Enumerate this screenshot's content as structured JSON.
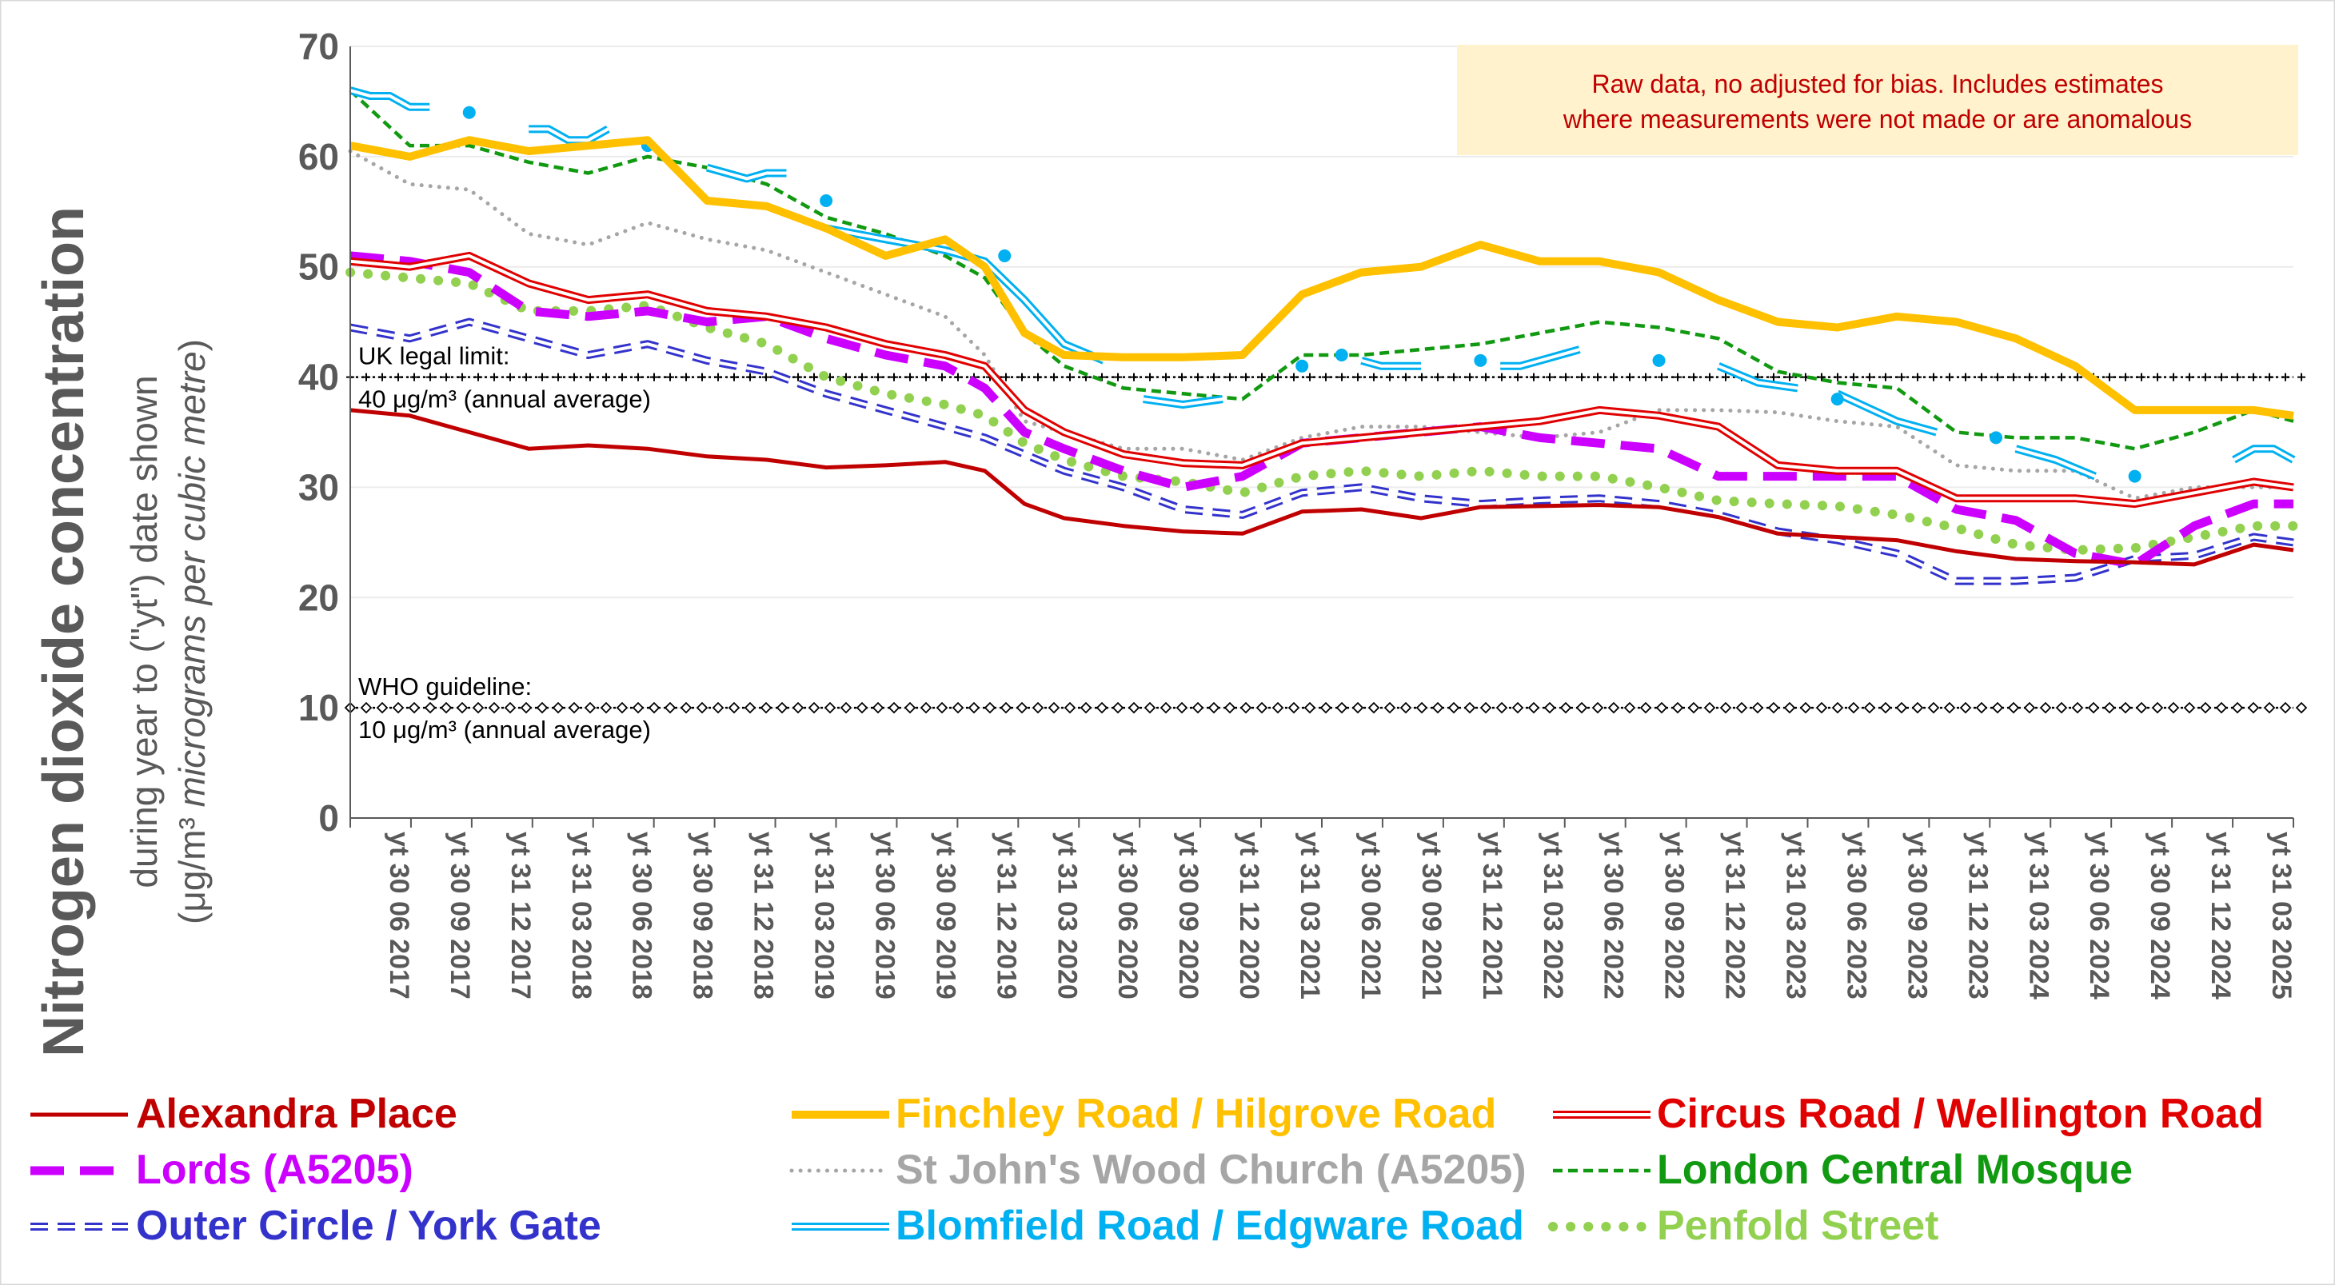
{
  "chart_data": {
    "type": "line",
    "ylabel": {
      "main": "Nitrogen dioxide concentration",
      "sub": "during year to (\"yt\") date shown",
      "unit_prefix": "(μg/m³  ",
      "unit_italic": "micrograms per cubic metre",
      "unit_suffix": ")"
    },
    "ylim": [
      0,
      70
    ],
    "yticks": [
      "0",
      "10",
      "20",
      "30",
      "40",
      "50",
      "60",
      "70"
    ],
    "xlim": [
      "2017-06",
      "2025-08"
    ],
    "xtick_labels": [
      "yt 30 06 2017",
      "yt 30 09 2017",
      "yt 31 12 2017",
      "yt 31 03 2018",
      "yt 30 06 2018",
      "yt 30 09 2018",
      "yt 31 12 2018",
      "yt 31 03 2019",
      "yt 30 06 2019",
      "yt 30 09 2019",
      "yt 31 12 2019",
      "yt 31 03 2020",
      "yt 30 06 2020",
      "yt 30 09 2020",
      "yt 31 12 2020",
      "yt 31 03 2021",
      "yt 30 06 2021",
      "yt 30 09 2021",
      "yt 31 12 2021",
      "yt 31 03 2022",
      "yt 30 06 2022",
      "yt 30 09 2022",
      "yt 31 12 2022",
      "yt 31 03 2023",
      "yt 30 06 2023",
      "yt 30 09 2023",
      "yt 31 12 2023",
      "yt 31 03 2024",
      "yt 30 06 2024",
      "yt 30 09 2024",
      "yt 31 12 2024",
      "yt 31 03 2025"
    ],
    "grid": "horizontal",
    "legend_position": "bottom",
    "annotation": {
      "line1": "Raw data, no adjusted for bias.  Includes estimates",
      "line2": "where measurements were not made or are anomalous",
      "color": "#c00000",
      "background": "#fff2cc"
    },
    "reference_lines": [
      {
        "value": 40,
        "label1": "UK legal limit:",
        "label2": "40 μg/m³ (annual average)"
      },
      {
        "value": 10,
        "label1": "WHO guideline:",
        "label2": "10 μg/m³ (annual average)"
      }
    ],
    "series": [
      {
        "name": "Alexandra Place",
        "color": "#c00000",
        "style": "solid",
        "x": [
          "2017-06",
          "2017-09",
          "2017-12",
          "2018-03",
          "2018-06",
          "2018-09",
          "2018-12",
          "2019-03",
          "2019-06",
          "2019-09",
          "2019-12",
          "2020-02",
          "2020-04",
          "2020-06",
          "2020-09",
          "2020-12",
          "2021-03",
          "2021-06",
          "2021-09",
          "2021-12",
          "2022-03",
          "2022-06",
          "2022-09",
          "2022-12",
          "2023-03",
          "2023-06",
          "2023-09",
          "2023-12",
          "2024-03",
          "2024-06",
          "2024-09",
          "2024-12",
          "2025-03",
          "2025-06",
          "2025-08"
        ],
        "y": [
          37,
          36.5,
          35,
          33.5,
          33.8,
          33.5,
          32.8,
          32.5,
          31.8,
          32,
          32.3,
          31.5,
          28.5,
          27.2,
          26.5,
          26,
          25.8,
          27.8,
          28,
          27.2,
          28.2,
          28.3,
          28.4,
          28.2,
          27.3,
          25.8,
          25.5,
          25.2,
          24.2,
          23.5,
          23.3,
          23.2,
          23,
          24.8,
          24.3
        ]
      },
      {
        "name": "Finchley Road / Hilgrove Road",
        "color": "#ffc000",
        "style": "thick",
        "x": [
          "2017-06",
          "2017-09",
          "2017-12",
          "2018-03",
          "2018-06",
          "2018-09",
          "2018-12",
          "2019-03",
          "2019-06",
          "2019-09",
          "2019-12",
          "2020-02",
          "2020-04",
          "2020-06",
          "2020-09",
          "2020-12",
          "2021-03",
          "2021-06",
          "2021-09",
          "2021-12",
          "2022-03",
          "2022-06",
          "2022-09",
          "2022-12",
          "2023-03",
          "2023-06",
          "2023-09",
          "2023-12",
          "2024-03",
          "2024-06",
          "2024-09",
          "2024-12",
          "2025-03",
          "2025-06",
          "2025-08"
        ],
        "y": [
          61,
          60,
          61.5,
          60.5,
          61,
          61.5,
          56,
          55.5,
          53.5,
          51,
          52.5,
          50,
          44,
          42,
          41.8,
          41.8,
          42,
          47.5,
          49.5,
          50,
          52,
          50.5,
          50.5,
          49.5,
          47,
          45,
          44.5,
          45.5,
          45,
          43.5,
          41,
          37,
          37,
          37,
          36.5
        ]
      },
      {
        "name": "Circus Road / Wellington Road",
        "color": "#e00000",
        "style": "double",
        "x": [
          "2017-06",
          "2017-09",
          "2017-12",
          "2018-03",
          "2018-06",
          "2018-09",
          "2018-12",
          "2019-03",
          "2019-06",
          "2019-09",
          "2019-12",
          "2020-02",
          "2020-04",
          "2020-06",
          "2020-09",
          "2020-12",
          "2021-03",
          "2021-06",
          "2021-09",
          "2021-12",
          "2022-03",
          "2022-06",
          "2022-09",
          "2022-12",
          "2023-03",
          "2023-06",
          "2023-09",
          "2023-12",
          "2024-03",
          "2024-06",
          "2024-09",
          "2024-12",
          "2025-03",
          "2025-06",
          "2025-08"
        ],
        "y": [
          50.5,
          50,
          51,
          48.5,
          47,
          47.5,
          46,
          45.5,
          44.5,
          43,
          42,
          41,
          37,
          35,
          33,
          32.2,
          32,
          34,
          34.5,
          35,
          35.5,
          36,
          37,
          36.5,
          35.5,
          32,
          31.5,
          31.5,
          29,
          29,
          29,
          28.5,
          29.5,
          30.5,
          30
        ]
      },
      {
        "name": "Lords (A5205)",
        "color": "#cc00ff",
        "style": "dashed-thick",
        "x": [
          "2017-06",
          "2017-09",
          "2017-12",
          "2018-03",
          "2018-06",
          "2018-09",
          "2018-12",
          "2019-03",
          "2019-06",
          "2019-09",
          "2019-12",
          "2020-02",
          "2020-04",
          "2020-06",
          "2020-09",
          "2020-12",
          "2021-03",
          "2021-06",
          "2021-09",
          "2021-12",
          "2022-03",
          "2022-06",
          "2022-09",
          "2022-12",
          "2023-03",
          "2023-06",
          "2023-09",
          "2023-12",
          "2024-03",
          "2024-06",
          "2024-09",
          "2024-12",
          "2025-03",
          "2025-06",
          "2025-08"
        ],
        "y": [
          51,
          50.5,
          49.5,
          46,
          45.5,
          46,
          45,
          45.5,
          43.5,
          42,
          41,
          39,
          35,
          33.5,
          31.5,
          30,
          31,
          34,
          34.5,
          35,
          35.5,
          34.5,
          34,
          33.5,
          31,
          31,
          31,
          31,
          28,
          27,
          24,
          23,
          26.5,
          28.5,
          28.5
        ]
      },
      {
        "name": "St John's Wood Church (A5205)",
        "color": "#a6a6a6",
        "style": "dotted",
        "x": [
          "2017-06",
          "2017-09",
          "2017-12",
          "2018-03",
          "2018-06",
          "2018-09",
          "2018-12",
          "2019-03",
          "2019-06",
          "2019-09",
          "2019-12",
          "2020-02",
          "2020-04",
          "2020-06",
          "2020-09",
          "2020-12",
          "2021-03",
          "2021-06",
          "2021-09",
          "2021-12",
          "2022-03",
          "2022-06",
          "2022-09",
          "2022-12",
          "2023-03",
          "2023-06",
          "2023-09",
          "2023-12",
          "2024-03",
          "2024-06",
          "2024-09",
          "2024-12",
          "2025-03",
          "2025-06",
          "2025-08"
        ],
        "y": [
          60.5,
          57.5,
          57,
          53,
          52,
          54,
          52.5,
          51.5,
          49.5,
          47.5,
          45.5,
          42,
          36,
          35,
          33.5,
          33.5,
          32.5,
          34.5,
          35.5,
          35.5,
          35,
          34.5,
          35,
          37,
          37,
          36.8,
          36,
          35.5,
          32,
          31.5,
          31.5,
          29,
          30,
          30,
          30
        ]
      },
      {
        "name": "London Central Mosque",
        "color": "#119a11",
        "style": "dashed",
        "x": [
          "2017-06",
          "2017-09",
          "2017-12",
          "2018-03",
          "2018-06",
          "2018-09",
          "2018-12",
          "2019-03",
          "2019-06",
          "2019-09",
          "2019-12",
          "2020-02",
          "2020-04",
          "2020-06",
          "2020-09",
          "2020-12",
          "2021-03",
          "2021-06",
          "2021-09",
          "2021-12",
          "2022-03",
          "2022-06",
          "2022-09",
          "2022-12",
          "2023-03",
          "2023-06",
          "2023-09",
          "2023-12",
          "2024-03",
          "2024-06",
          "2024-09",
          "2024-12",
          "2025-03",
          "2025-06",
          "2025-08"
        ],
        "y": [
          66,
          61,
          61,
          59.5,
          58.5,
          60,
          59,
          57.5,
          54.5,
          53,
          51,
          49,
          44,
          41,
          39,
          38.5,
          38,
          42,
          42,
          42.5,
          43,
          44,
          45,
          44.5,
          43.5,
          40.5,
          39.5,
          39,
          35,
          34.5,
          34.5,
          33.5,
          35,
          37,
          36
        ]
      },
      {
        "name": "Outer Circle / York Gate",
        "color": "#3333cc",
        "style": "double-dash",
        "x": [
          "2017-06",
          "2017-09",
          "2017-12",
          "2018-03",
          "2018-06",
          "2018-09",
          "2018-12",
          "2019-03",
          "2019-06",
          "2019-09",
          "2019-12",
          "2020-02",
          "2020-04",
          "2020-06",
          "2020-09",
          "2020-12",
          "2021-03",
          "2021-06",
          "2021-09",
          "2021-12",
          "2022-03",
          "2022-06",
          "2022-09",
          "2022-12",
          "2023-03",
          "2023-06",
          "2023-09",
          "2023-12",
          "2024-03",
          "2024-06",
          "2024-09",
          "2024-12",
          "2025-03",
          "2025-06",
          "2025-08"
        ],
        "y": [
          44.5,
          43.5,
          45,
          43.5,
          42,
          43,
          41.5,
          40.5,
          38.5,
          37,
          35.5,
          34.5,
          33,
          31.5,
          30,
          28,
          27.5,
          29.5,
          30,
          29,
          28.5,
          28.8,
          29,
          28.5,
          27.5,
          26,
          25.2,
          24,
          21.5,
          21.5,
          21.8,
          23.5,
          23.8,
          25.5,
          25
        ]
      },
      {
        "name": "Blomfield Road / Edgware Road",
        "color": "#00b0f0",
        "style": "double",
        "segments": [
          {
            "x": [
              "2017-06",
              "2017-07",
              "2017-08",
              "2017-09",
              "2017-10"
            ],
            "y": [
              66,
              65.5,
              65.5,
              64.5,
              64.5
            ]
          },
          {
            "x": [
              "2018-03",
              "2018-04",
              "2018-05",
              "2018-06",
              "2018-07"
            ],
            "y": [
              62.5,
              62.5,
              61.5,
              61.5,
              62.5
            ]
          },
          {
            "x": [
              "2018-12",
              "2019-01",
              "2019-02",
              "2019-03",
              "2019-04"
            ],
            "y": [
              59,
              58.5,
              58,
              58.5,
              58.5
            ]
          },
          {
            "x": [
              "2019-06",
              "2019-09",
              "2019-12",
              "2020-02",
              "2020-04",
              "2020-06",
              "2020-08"
            ],
            "y": [
              53.5,
              52.5,
              51.5,
              50.5,
              47,
              43,
              41.5
            ]
          },
          {
            "x": [
              "2020-10",
              "2020-12",
              "2021-02"
            ],
            "y": [
              38,
              37.5,
              38
            ]
          },
          {
            "x": [
              "2021-09",
              "2021-10",
              "2021-11",
              "2021-12"
            ],
            "y": [
              41.5,
              41,
              41,
              41
            ]
          },
          {
            "x": [
              "2022-04",
              "2022-05",
              "2022-06",
              "2022-07",
              "2022-08"
            ],
            "y": [
              41,
              41,
              41.5,
              42,
              42.5
            ]
          },
          {
            "x": [
              "2023-03",
              "2023-05",
              "2023-07"
            ],
            "y": [
              41,
              39.5,
              39
            ]
          },
          {
            "x": [
              "2023-09",
              "2023-12",
              "2024-02"
            ],
            "y": [
              38.5,
              36,
              35
            ]
          },
          {
            "x": [
              "2024-06",
              "2024-08",
              "2024-10"
            ],
            "y": [
              33.5,
              32.5,
              31
            ]
          },
          {
            "x": [
              "2025-05",
              "2025-06",
              "2025-07",
              "2025-08"
            ],
            "y": [
              32.5,
              33.5,
              33.5,
              32.5
            ]
          }
        ],
        "points": {
          "x": [
            "2017-12",
            "2018-09",
            "2019-06",
            "2020-03",
            "2021-06",
            "2021-08",
            "2022-03",
            "2022-12",
            "2023-09",
            "2024-05",
            "2024-12"
          ],
          "y": [
            64,
            61,
            56,
            51,
            41,
            42,
            41.5,
            41.5,
            38,
            34.5,
            31
          ]
        }
      },
      {
        "name": "Penfold Street",
        "color": "#92d050",
        "style": "dotted-bold",
        "x": [
          "2017-06",
          "2017-09",
          "2017-12",
          "2018-03",
          "2018-06",
          "2018-09",
          "2018-12",
          "2019-03",
          "2019-06",
          "2019-09",
          "2019-12",
          "2020-02",
          "2020-04",
          "2020-06",
          "2020-09",
          "2020-12",
          "2021-03",
          "2021-06",
          "2021-09",
          "2021-12",
          "2022-03",
          "2022-06",
          "2022-09",
          "2022-12",
          "2023-03",
          "2023-06",
          "2023-09",
          "2023-12",
          "2024-03",
          "2024-06",
          "2024-09",
          "2024-12",
          "2025-03",
          "2025-06",
          "2025-08"
        ],
        "y": [
          49.5,
          49,
          48.5,
          46,
          46,
          46.5,
          44.5,
          43,
          40,
          38.5,
          37.5,
          36.5,
          34,
          32.5,
          31,
          30.5,
          29.5,
          31,
          31.5,
          31,
          31.5,
          31,
          31,
          30,
          28.8,
          28.5,
          28.3,
          27.5,
          26.3,
          24.8,
          24.3,
          24.5,
          25.5,
          26.5,
          26.5
        ]
      }
    ]
  }
}
